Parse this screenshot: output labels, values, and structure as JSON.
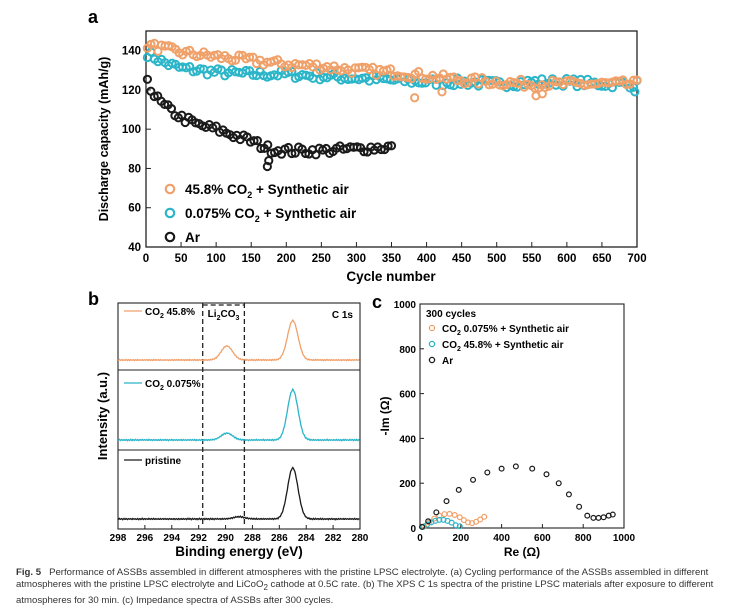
{
  "colors": {
    "orange": "#f0a16a",
    "teal": "#2bb5c9",
    "black": "#1a1a1a"
  },
  "chart_data": [
    {
      "panel": "a",
      "type": "scatter",
      "xlabel": "Cycle number",
      "ylabel": "Discharge capacity (mAh/g)",
      "xlim": [
        0,
        700
      ],
      "ylim": [
        40,
        150
      ],
      "xticks": [
        0,
        50,
        100,
        150,
        200,
        250,
        300,
        350,
        400,
        450,
        500,
        550,
        600,
        650,
        700
      ],
      "yticks": [
        40,
        60,
        80,
        100,
        120,
        140
      ],
      "legend_position": "bottom-left",
      "series": [
        {
          "name": "45.8% CO2 + Synthetic air",
          "legend_main": "45.8% CO",
          "legend_sub": "2",
          "legend_rest": " + Synthetic air",
          "color": "orange",
          "points": 140,
          "x": [
            0,
            25,
            50,
            100,
            150,
            200,
            250,
            300,
            350,
            400,
            450,
            500,
            550,
            600,
            650,
            700
          ],
          "y": [
            143,
            141,
            139,
            137,
            135,
            133,
            132,
            130,
            129,
            127,
            125,
            124,
            123,
            123,
            123,
            123
          ],
          "outliers": [
            [
              383,
              116
            ],
            [
              422,
              119
            ],
            [
              556,
              117
            ],
            [
              565,
              118
            ]
          ]
        },
        {
          "name": "0.075% CO2 + Synthetic air",
          "legend_main": "0.075% CO",
          "legend_sub": "2",
          "legend_rest": " + Synthetic air",
          "color": "teal",
          "points": 140,
          "x": [
            0,
            25,
            50,
            100,
            150,
            200,
            250,
            300,
            350,
            400,
            450,
            500,
            550,
            600,
            650,
            700
          ],
          "y": [
            139,
            134,
            131,
            129,
            128,
            128,
            127,
            126,
            125,
            124,
            124,
            123,
            124,
            124,
            123,
            123
          ],
          "outliers": [
            [
              697,
              119
            ]
          ]
        },
        {
          "name": "Ar",
          "legend_main": "Ar",
          "legend_sub": "",
          "legend_rest": "",
          "color": "black",
          "points": 72,
          "x": [
            0,
            10,
            25,
            50,
            75,
            100,
            125,
            150,
            175,
            200,
            250,
            300,
            350
          ],
          "y": [
            128,
            118,
            112,
            106,
            102,
            100,
            97,
            94,
            90,
            89,
            89,
            90,
            91
          ],
          "outliers": [
            [
              173,
              81
            ],
            [
              175,
              84
            ]
          ]
        }
      ]
    },
    {
      "panel": "b",
      "type": "line",
      "xlabel": "Binding energy (eV)",
      "ylabel": "Intensity (a.u.)",
      "xlim": [
        298,
        280
      ],
      "xticks": [
        298,
        296,
        294,
        292,
        290,
        288,
        286,
        284,
        282,
        280
      ],
      "corner_label": "C 1s",
      "region_label_main": "Li",
      "region_label_sub1": "2",
      "region_label_mid": "CO",
      "region_label_sub2": "3",
      "region_range_eV": [
        291.7,
        288.6
      ],
      "series": [
        {
          "name": "CO2 45.8%",
          "label_main": "CO",
          "label_sub": "2",
          "label_rest": " 45.8%",
          "color": "orange",
          "peak_main_eV": 285.0,
          "peak_main_height": 0.62,
          "peak_carbonate_eV": 289.9,
          "peak_carbonate_height": 0.22
        },
        {
          "name": "CO2 0.075%",
          "label_main": "CO",
          "label_sub": "2",
          "label_rest": " 0.075%",
          "color": "teal",
          "peak_main_eV": 285.0,
          "peak_main_height": 0.66,
          "peak_carbonate_eV": 289.9,
          "peak_carbonate_height": 0.09
        },
        {
          "name": "pristine",
          "label_main": "pristine",
          "label_sub": "",
          "label_rest": "",
          "color": "black",
          "peak_main_eV": 285.0,
          "peak_main_height": 0.68,
          "peak_carbonate_eV": 289.0,
          "peak_carbonate_height": 0.03
        }
      ]
    },
    {
      "panel": "c",
      "type": "scatter",
      "xlabel": "Re (Ω)",
      "ylabel": "-Im (Ω)",
      "xlim": [
        0,
        1000
      ],
      "ylim": [
        0,
        1000
      ],
      "xticks": [
        0,
        200,
        400,
        600,
        800,
        1000
      ],
      "yticks": [
        0,
        200,
        400,
        600,
        800,
        1000
      ],
      "corner_label": "300 cycles",
      "series": [
        {
          "name": "CO2 0.075% + Synthetic air",
          "label_main": "CO",
          "label_sub": "2",
          "label_rest": " 0.075% + Synthetic air",
          "color": "orange",
          "x": [
            20,
            45,
            70,
            95,
            120,
            145,
            170,
            195,
            215,
            235,
            255,
            275,
            295,
            315
          ],
          "y": [
            8,
            25,
            42,
            55,
            62,
            63,
            58,
            48,
            35,
            25,
            22,
            28,
            38,
            50
          ]
        },
        {
          "name": "CO2 45.8% + Synthetic air",
          "label_main": "CO",
          "label_sub": "2",
          "label_rest": " 45.8% + Synthetic air",
          "color": "teal",
          "x": [
            15,
            35,
            55,
            75,
            95,
            115,
            135,
            155,
            175,
            195
          ],
          "y": [
            5,
            15,
            25,
            32,
            36,
            36,
            32,
            24,
            12,
            8
          ]
        },
        {
          "name": "Ar",
          "label_main": "Ar",
          "label_sub": "",
          "label_rest": "",
          "color": "black",
          "x": [
            10,
            40,
            80,
            130,
            190,
            260,
            330,
            400,
            470,
            550,
            620,
            680,
            730,
            780,
            820,
            850,
            875,
            900,
            925,
            945
          ],
          "y": [
            5,
            30,
            70,
            120,
            170,
            215,
            248,
            265,
            275,
            265,
            240,
            200,
            150,
            95,
            55,
            45,
            45,
            48,
            55,
            60
          ]
        }
      ]
    }
  ],
  "caption": {
    "label": "Fig. 5",
    "text_part1": "Performance of ASSBs assembled in different atmospheres with the pristine LPSC electrolyte. (a) Cycling performance of the ASSBs assembled in different atmospheres with the pristine LPSC electrolyte and LiCoO",
    "sub": "2",
    "text_part2": " cathode at 0.5C rate. (b) The XPS C 1s spectra of the pristine LPSC materials after exposure to different atmospheres for 30 min. (c) Impedance spectra of ASSBs after 300 cycles."
  },
  "panels": {
    "a": "a",
    "b": "b",
    "c": "c"
  }
}
